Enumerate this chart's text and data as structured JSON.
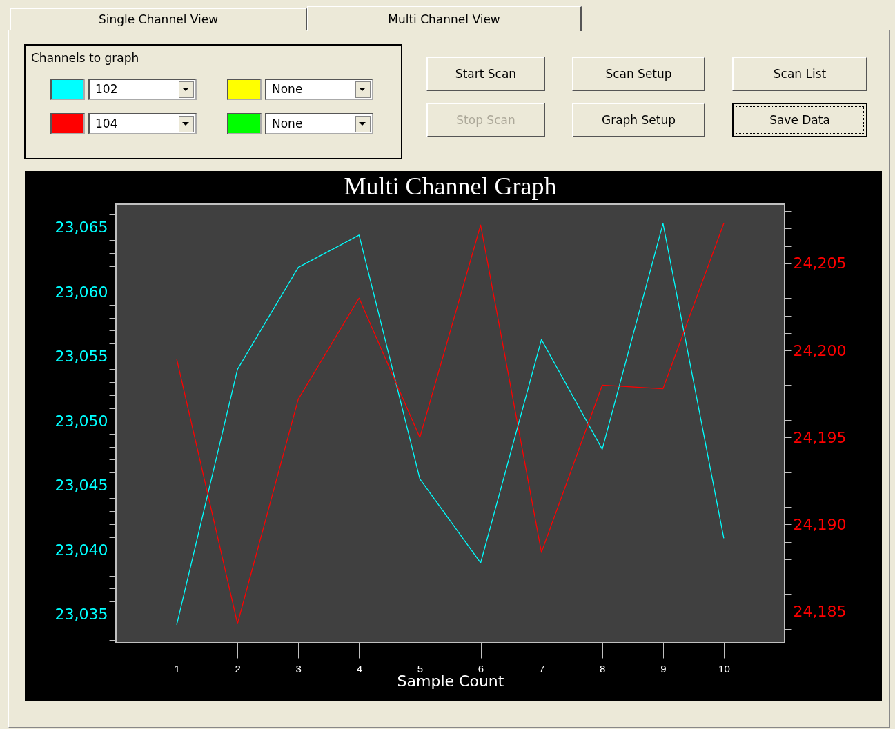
{
  "chart_data": [
    {
      "type": "other",
      "annotations": [
        "Single Channel View",
        "Multi Channel View",
        "Channels to graph",
        "None",
        "None",
        "Start Scan",
        "Scan Setup",
        "Scan List",
        "Stop Scan",
        "Graph Setup",
        "Save Data"
      ],
      "colors": [
        "#ffff00",
        "#00ff00"
      ]
    },
    {
      "type": "line",
      "title": "Multi Channel Graph",
      "xlabel": "Sample Count",
      "x": [
        1,
        2,
        3,
        4,
        5,
        6,
        7,
        8,
        9,
        10
      ],
      "xlim": [
        0,
        11
      ],
      "xticks": [
        1,
        2,
        3,
        4,
        5,
        6,
        7,
        8,
        9,
        10
      ],
      "ylim": [
        23032.8,
        23066.8
      ],
      "yticks": [
        {
          "value": 23033,
          "label": null
        },
        {
          "value": 23034,
          "label": null
        },
        {
          "value": 23035,
          "label": "23,035"
        },
        {
          "value": 23036,
          "label": null
        },
        {
          "value": 23037,
          "label": null
        },
        {
          "value": 23038,
          "label": null
        },
        {
          "value": 23039,
          "label": null
        },
        {
          "value": 23040,
          "label": "23,040"
        },
        {
          "value": 23041,
          "label": null
        },
        {
          "value": 23042,
          "label": null
        },
        {
          "value": 23043,
          "label": null
        },
        {
          "value": 23044,
          "label": null
        },
        {
          "value": 23045,
          "label": "23,045"
        },
        {
          "value": 23046,
          "label": null
        },
        {
          "value": 23047,
          "label": null
        },
        {
          "value": 23048,
          "label": null
        },
        {
          "value": 23049,
          "label": null
        },
        {
          "value": 23050,
          "label": "23,050"
        },
        {
          "value": 23051,
          "label": null
        },
        {
          "value": 23052,
          "label": null
        },
        {
          "value": 23053,
          "label": null
        },
        {
          "value": 23054,
          "label": null
        },
        {
          "value": 23055,
          "label": "23,055"
        },
        {
          "value": 23056,
          "label": null
        },
        {
          "value": 23057,
          "label": null
        },
        {
          "value": 23058,
          "label": null
        },
        {
          "value": 23059,
          "label": null
        },
        {
          "value": 23060,
          "label": "23,060"
        },
        {
          "value": 23061,
          "label": null
        },
        {
          "value": 23062,
          "label": null
        },
        {
          "value": 23063,
          "label": null
        },
        {
          "value": 23064,
          "label": null
        },
        {
          "value": 23065,
          "label": "23,065"
        },
        {
          "value": 23066,
          "label": null
        }
      ],
      "y2lim": [
        24183.2,
        24208.4
      ],
      "y2ticks": [
        {
          "value": 24184,
          "label": null
        },
        {
          "value": 24185,
          "label": "24,185"
        },
        {
          "value": 24186,
          "label": null
        },
        {
          "value": 24187,
          "label": null
        },
        {
          "value": 24188,
          "label": null
        },
        {
          "value": 24189,
          "label": null
        },
        {
          "value": 24190,
          "label": "24,190"
        },
        {
          "value": 24191,
          "label": null
        },
        {
          "value": 24192,
          "label": null
        },
        {
          "value": 24193,
          "label": null
        },
        {
          "value": 24194,
          "label": null
        },
        {
          "value": 24195,
          "label": "24,195"
        },
        {
          "value": 24196,
          "label": null
        },
        {
          "value": 24197,
          "label": null
        },
        {
          "value": 24198,
          "label": null
        },
        {
          "value": 24199,
          "label": null
        },
        {
          "value": 24200,
          "label": "24,200"
        },
        {
          "value": 24201,
          "label": null
        },
        {
          "value": 24202,
          "label": null
        },
        {
          "value": 24203,
          "label": null
        },
        {
          "value": 24204,
          "label": null
        },
        {
          "value": 24205,
          "label": "24,205"
        },
        {
          "value": 24206,
          "label": null
        },
        {
          "value": 24207,
          "label": null
        },
        {
          "value": 24208,
          "label": null
        }
      ],
      "series": [
        {
          "name": "102",
          "color": "#00ffff",
          "values": [
            23034.2,
            23054.0,
            23061.9,
            23064.4,
            23045.5,
            23039.0,
            23056.3,
            23047.8,
            23065.3,
            23040.9
          ]
        },
        {
          "name": "104",
          "color": "#ff0000",
          "axis": "y2",
          "values": [
            24199.5,
            24184.3,
            24197.2,
            24203.0,
            24195.0,
            24207.2,
            24188.4,
            24198.0,
            24197.8,
            24207.3
          ]
        }
      ]
    }
  ]
}
